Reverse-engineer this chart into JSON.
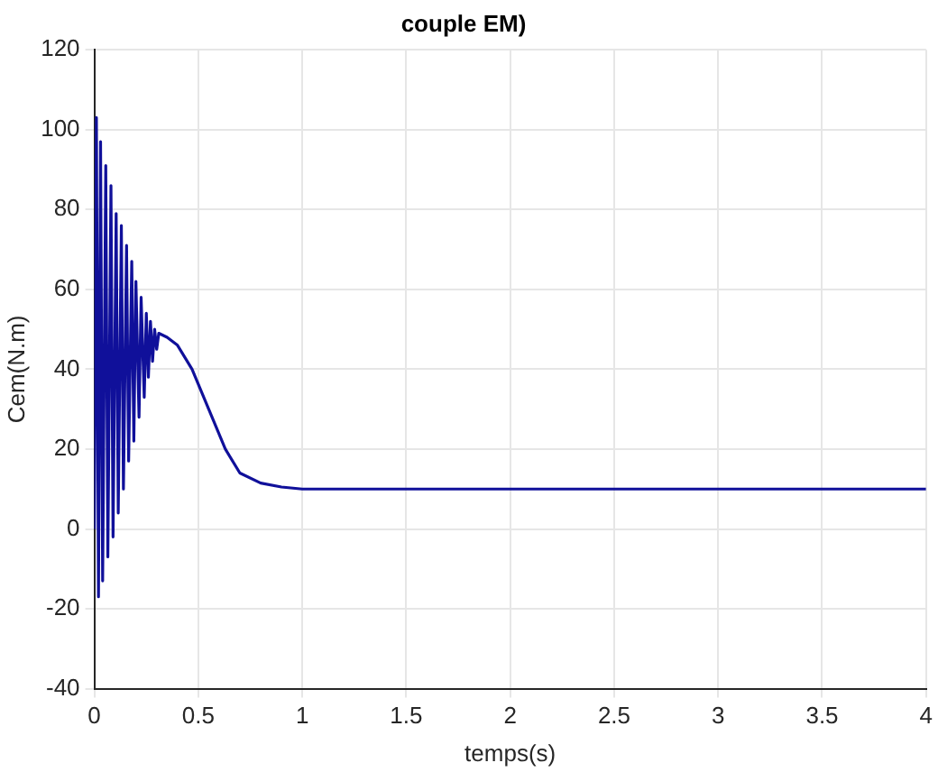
{
  "chart_data": {
    "type": "line",
    "title": "couple EM)",
    "xlabel": "temps(s)",
    "ylabel": "Cem(N.m)",
    "x": [
      0,
      0.01,
      0.02,
      0.03,
      0.04,
      0.055,
      0.065,
      0.08,
      0.09,
      0.105,
      0.115,
      0.13,
      0.14,
      0.155,
      0.165,
      0.18,
      0.19,
      0.2,
      0.215,
      0.225,
      0.24,
      0.25,
      0.26,
      0.27,
      0.28,
      0.29,
      0.3,
      0.31,
      0.35,
      0.4,
      0.47,
      0.55,
      0.63,
      0.7,
      0.8,
      0.9,
      1,
      1.5,
      2,
      2.5,
      3,
      3.5,
      4
    ],
    "series": [
      {
        "color": "#10109a",
        "values": [
          0,
          103,
          -17,
          97,
          -13,
          91,
          -7,
          86,
          -2,
          79,
          4,
          76,
          10,
          71,
          17,
          67,
          22,
          62,
          28,
          58,
          33,
          54,
          38,
          52,
          42,
          50,
          45,
          49,
          48,
          46,
          40,
          30,
          20,
          14,
          11.5,
          10.5,
          10,
          10,
          10,
          10,
          10,
          10,
          10
        ]
      }
    ],
    "xlim": [
      0,
      4
    ],
    "xticks": [
      0,
      0.5,
      1,
      1.5,
      2,
      2.5,
      3,
      3.5,
      4
    ],
    "ylim": [
      -40,
      120
    ],
    "yticks": [
      -40,
      -20,
      0,
      20,
      40,
      60,
      80,
      100,
      120
    ],
    "grid": true,
    "legend": false,
    "marker": "none",
    "line_style": "solid"
  }
}
